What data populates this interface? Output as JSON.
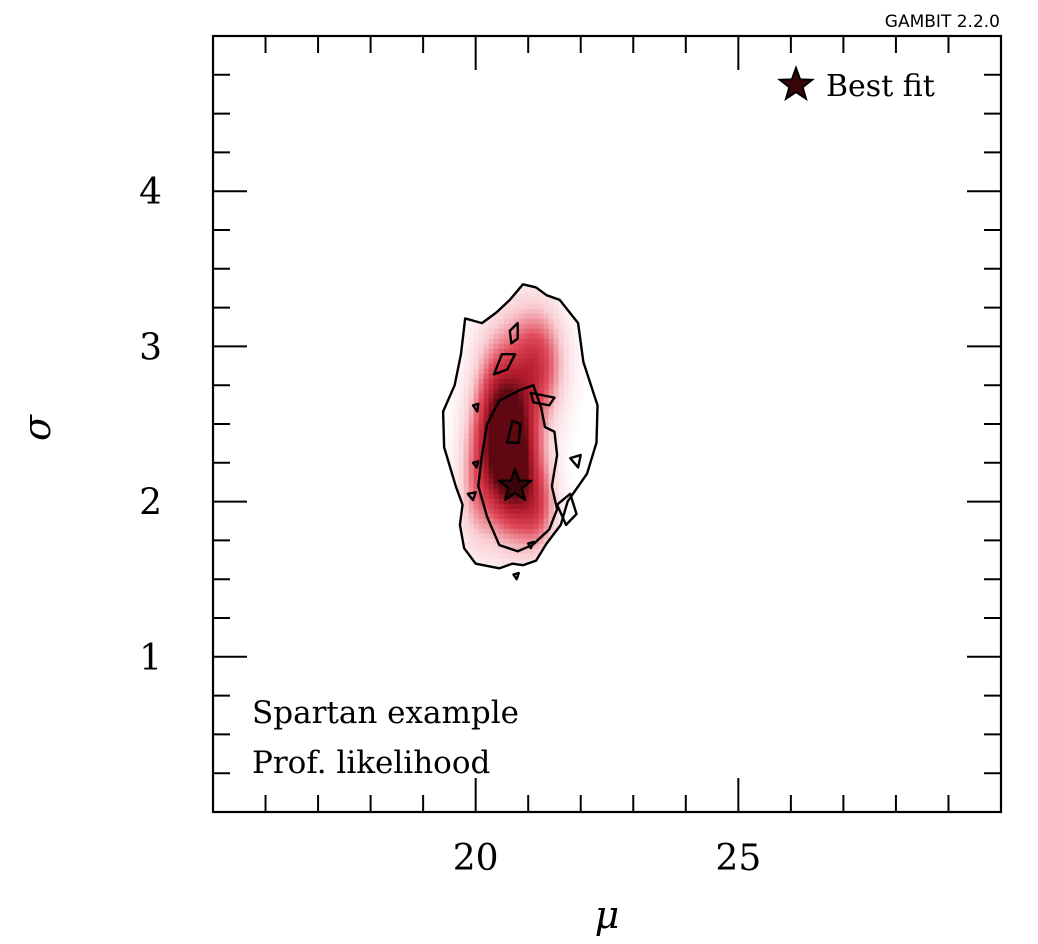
{
  "watermark": "GAMBIT 2.2.0",
  "chart_data": {
    "type": "heatmap",
    "xlabel": "μ",
    "ylabel": "σ",
    "xlim": [
      15,
      30
    ],
    "ylim": [
      0,
      5
    ],
    "x_ticks": [
      20,
      25
    ],
    "y_ticks": [
      1,
      2,
      3,
      4
    ],
    "x_minor_step": 1,
    "y_minor_step": 0.25,
    "grid": false,
    "colormap": "white-to-dark-red (profile likelihood)",
    "best_fit": {
      "x": 20.75,
      "y": 2.1,
      "label": "Best fit"
    },
    "legend_position": "top-right",
    "annotations": [
      "Spartan example",
      "Prof. likelihood"
    ],
    "density_blobs": [
      {
        "x": 20.7,
        "y": 2.25,
        "sx": 0.35,
        "sy": 0.32,
        "w": 1.0
      },
      {
        "x": 21.2,
        "y": 2.9,
        "sx": 0.35,
        "sy": 0.25,
        "w": 0.55
      },
      {
        "x": 20.4,
        "y": 2.55,
        "sx": 0.3,
        "sy": 0.3,
        "w": 0.45
      },
      {
        "x": 21.2,
        "y": 1.95,
        "sx": 0.25,
        "sy": 0.2,
        "w": 0.4
      },
      {
        "x": 20.0,
        "y": 2.1,
        "sx": 0.25,
        "sy": 0.3,
        "w": 0.3
      },
      {
        "x": 20.6,
        "y": 2.7,
        "sx": 0.45,
        "sy": 0.45,
        "w": 0.25
      }
    ],
    "contours": [
      {
        "level": "outer",
        "points": [
          [
            19.8,
            3.18
          ],
          [
            19.72,
            2.95
          ],
          [
            19.6,
            2.75
          ],
          [
            19.38,
            2.58
          ],
          [
            19.4,
            2.35
          ],
          [
            19.62,
            2.1
          ],
          [
            19.75,
            1.98
          ],
          [
            19.7,
            1.85
          ],
          [
            19.78,
            1.7
          ],
          [
            20.0,
            1.6
          ],
          [
            20.45,
            1.57
          ],
          [
            20.7,
            1.6
          ],
          [
            20.9,
            1.59
          ],
          [
            21.15,
            1.62
          ],
          [
            21.35,
            1.73
          ],
          [
            21.62,
            1.85
          ],
          [
            21.75,
            2.0
          ],
          [
            22.12,
            2.18
          ],
          [
            22.3,
            2.38
          ],
          [
            22.32,
            2.62
          ],
          [
            22.05,
            2.9
          ],
          [
            21.95,
            3.15
          ],
          [
            21.6,
            3.3
          ],
          [
            21.35,
            3.33
          ],
          [
            21.15,
            3.38
          ],
          [
            20.9,
            3.4
          ],
          [
            20.65,
            3.3
          ],
          [
            20.4,
            3.22
          ],
          [
            20.12,
            3.15
          ]
        ]
      },
      {
        "level": "inner",
        "points": [
          [
            20.45,
            2.65
          ],
          [
            20.85,
            2.72
          ],
          [
            21.1,
            2.75
          ],
          [
            21.25,
            2.6
          ],
          [
            21.32,
            2.48
          ],
          [
            21.5,
            2.45
          ],
          [
            21.55,
            2.3
          ],
          [
            21.45,
            2.1
          ],
          [
            21.55,
            1.95
          ],
          [
            21.4,
            1.82
          ],
          [
            21.08,
            1.72
          ],
          [
            20.8,
            1.68
          ],
          [
            20.45,
            1.72
          ],
          [
            20.22,
            1.9
          ],
          [
            20.05,
            2.1
          ],
          [
            20.12,
            2.3
          ],
          [
            20.22,
            2.5
          ]
        ]
      },
      {
        "level": "island",
        "points": [
          [
            21.55,
            1.98
          ],
          [
            21.8,
            2.05
          ],
          [
            21.92,
            1.92
          ],
          [
            21.72,
            1.85
          ]
        ]
      },
      {
        "level": "island",
        "points": [
          [
            20.6,
            2.38
          ],
          [
            20.82,
            2.38
          ],
          [
            20.85,
            2.5
          ],
          [
            20.7,
            2.52
          ]
        ]
      },
      {
        "level": "island",
        "points": [
          [
            20.65,
            3.1
          ],
          [
            20.8,
            3.15
          ],
          [
            20.8,
            3.05
          ],
          [
            20.68,
            3.02
          ]
        ]
      },
      {
        "level": "island",
        "points": [
          [
            20.35,
            2.82
          ],
          [
            20.6,
            2.85
          ],
          [
            20.75,
            2.95
          ],
          [
            20.5,
            2.95
          ]
        ]
      },
      {
        "level": "island",
        "points": [
          [
            21.05,
            2.7
          ],
          [
            21.5,
            2.67
          ],
          [
            21.4,
            2.62
          ],
          [
            21.1,
            2.64
          ]
        ]
      },
      {
        "level": "island",
        "points": [
          [
            21.8,
            2.28
          ],
          [
            22.0,
            2.3
          ],
          [
            21.95,
            2.22
          ]
        ]
      },
      {
        "level": "island",
        "points": [
          [
            19.95,
            2.62
          ],
          [
            20.05,
            2.63
          ],
          [
            20.03,
            2.58
          ]
        ]
      },
      {
        "level": "island",
        "points": [
          [
            19.95,
            2.25
          ],
          [
            20.05,
            2.26
          ],
          [
            20.02,
            2.22
          ]
        ]
      },
      {
        "level": "island",
        "points": [
          [
            19.85,
            2.05
          ],
          [
            20.0,
            2.06
          ],
          [
            19.95,
            2.01
          ]
        ]
      },
      {
        "level": "island",
        "points": [
          [
            21.0,
            1.73
          ],
          [
            21.1,
            1.74
          ],
          [
            21.05,
            1.7
          ]
        ]
      },
      {
        "level": "island",
        "points": [
          [
            20.72,
            1.53
          ],
          [
            20.82,
            1.54
          ],
          [
            20.78,
            1.5
          ]
        ]
      }
    ]
  }
}
